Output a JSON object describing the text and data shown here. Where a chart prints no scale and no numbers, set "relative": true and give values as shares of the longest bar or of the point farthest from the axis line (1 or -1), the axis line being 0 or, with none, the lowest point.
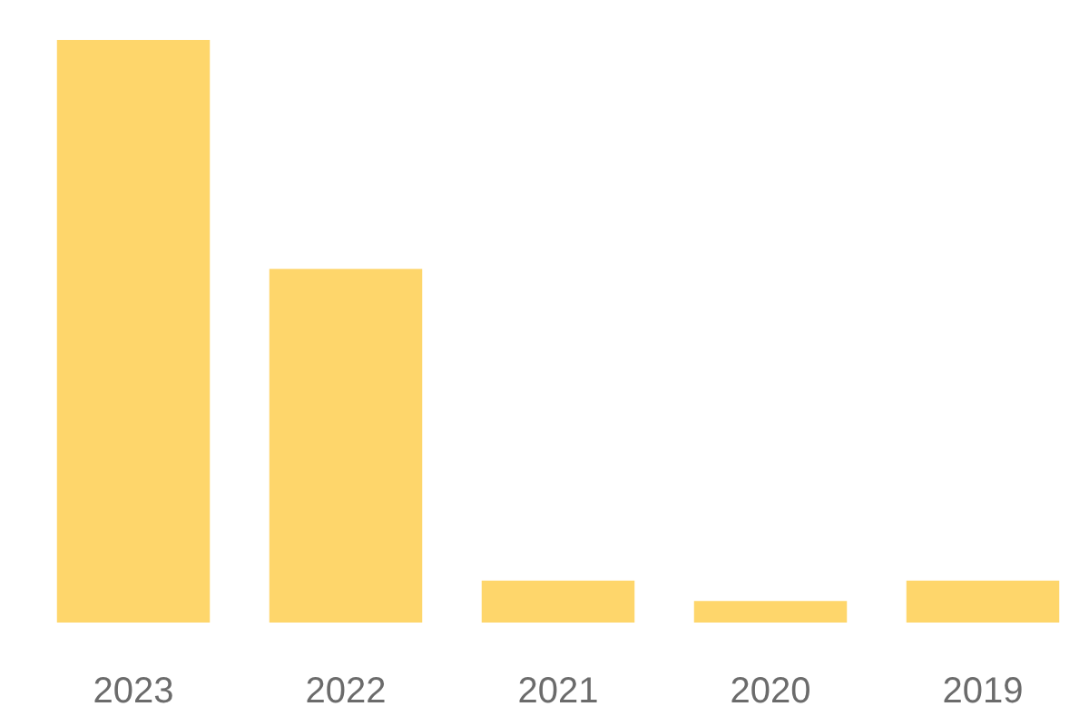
{
  "chart_data": {
    "type": "bar",
    "relative": true,
    "categories": [
      "2023",
      "2022",
      "2021",
      "2020",
      "2019"
    ],
    "values": [
      1,
      0.607,
      0.072,
      0.037,
      0.072
    ],
    "color": "#fed66b"
  }
}
